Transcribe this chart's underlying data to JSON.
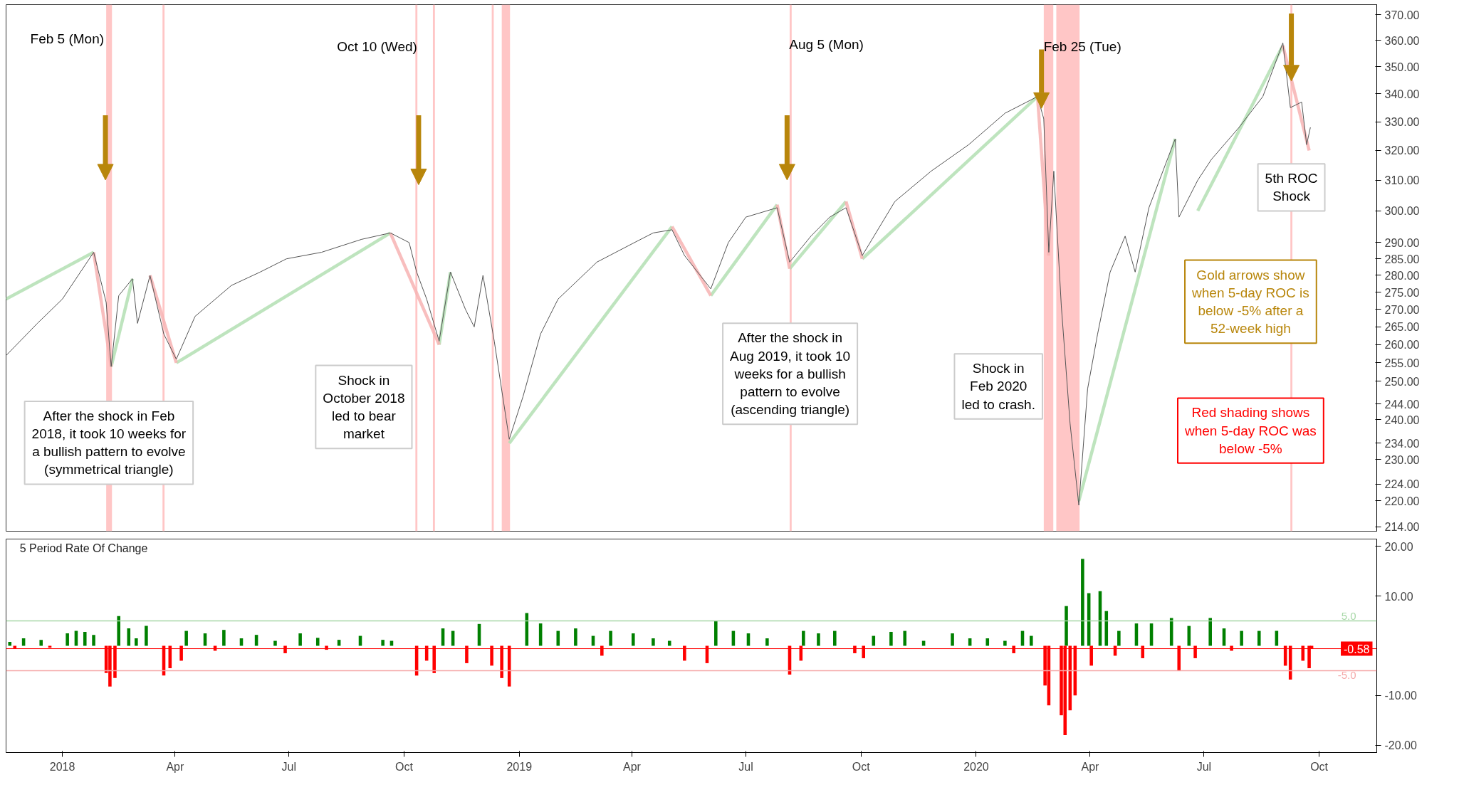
{
  "chart_data": [
    {
      "type": "line",
      "xlim": [
        "2017-11-17",
        "2020-11-16"
      ],
      "ylim": [
        213,
        374
      ],
      "log": true,
      "grid": false,
      "tick_labels": "y",
      "yticks": [
        {
          "value": 370,
          "label": "370.00"
        },
        {
          "value": 360,
          "label": "360.00"
        },
        {
          "value": 350,
          "label": "350.00"
        },
        {
          "value": 340,
          "label": "340.00"
        },
        {
          "value": 330,
          "label": "330.00"
        },
        {
          "value": 320,
          "label": "320.00"
        },
        {
          "value": 310,
          "label": "310.00"
        },
        {
          "value": 300,
          "label": "300.00"
        },
        {
          "value": 290,
          "label": "290.00"
        },
        {
          "value": 285,
          "label": "285.00"
        },
        {
          "value": 280,
          "label": "280.00"
        },
        {
          "value": 275,
          "label": "275.00"
        },
        {
          "value": 270,
          "label": "270.00"
        },
        {
          "value": 265,
          "label": "265.00"
        },
        {
          "value": 260,
          "label": "260.00"
        },
        {
          "value": 255,
          "label": "255.00"
        },
        {
          "value": 250,
          "label": "250.00"
        },
        {
          "value": 244,
          "label": "244.00"
        },
        {
          "value": 240,
          "label": "240.00"
        },
        {
          "value": 234,
          "label": "234.00"
        },
        {
          "value": 230,
          "label": "230.00"
        },
        {
          "value": 224,
          "label": "224.00"
        },
        {
          "value": 220,
          "label": "220.00"
        },
        {
          "value": 214,
          "label": "214.00"
        }
      ],
      "series": [
        {
          "color": "#b3dfb3",
          "x": [
            "2017-11-17",
            "2018-01-26"
          ],
          "values": [
            273,
            287
          ]
        },
        {
          "color": "#b3dfb3",
          "x": [
            "2018-02-09",
            "2018-02-26"
          ],
          "values": [
            254,
            279
          ]
        },
        {
          "color": "#b3dfb3",
          "x": [
            "2018-04-02",
            "2018-09-20"
          ],
          "values": [
            255,
            293
          ]
        },
        {
          "color": "#b3dfb3",
          "x": [
            "2018-10-29",
            "2018-11-07"
          ],
          "values": [
            260,
            281
          ]
        },
        {
          "color": "#b3dfb3",
          "x": [
            "2018-12-24",
            "2019-05-03"
          ],
          "values": [
            234,
            295
          ]
        },
        {
          "color": "#b3dfb3",
          "x": [
            "2019-06-03",
            "2019-07-26"
          ],
          "values": [
            274,
            302
          ]
        },
        {
          "color": "#b3dfb3",
          "x": [
            "2019-08-05",
            "2019-09-19"
          ],
          "values": [
            282,
            303
          ]
        },
        {
          "color": "#b3dfb3",
          "x": [
            "2019-10-02",
            "2020-02-19"
          ],
          "values": [
            285,
            339
          ]
        },
        {
          "color": "#b3dfb3",
          "x": [
            "2020-03-23",
            "2020-06-08"
          ],
          "values": [
            220,
            324
          ]
        },
        {
          "color": "#b3dfb3",
          "x": [
            "2020-06-26",
            "2020-09-02"
          ],
          "values": [
            300,
            358
          ]
        },
        {
          "color": "#f7b3b3",
          "x": [
            "2018-01-26",
            "2018-02-09"
          ],
          "values": [
            287,
            254
          ]
        },
        {
          "color": "#f7b3b3",
          "x": [
            "2018-03-12",
            "2018-04-02"
          ],
          "values": [
            280,
            255
          ]
        },
        {
          "color": "#f7b3b3",
          "x": [
            "2018-09-20",
            "2018-10-29"
          ],
          "values": [
            293,
            260
          ]
        },
        {
          "color": "#f7b3b3",
          "x": [
            "2019-05-03",
            "2019-06-03"
          ],
          "values": [
            295,
            274
          ]
        },
        {
          "color": "#f7b3b3",
          "x": [
            "2019-07-26",
            "2019-08-05"
          ],
          "values": [
            302,
            282
          ]
        },
        {
          "color": "#f7b3b3",
          "x": [
            "2019-09-19",
            "2019-10-02"
          ],
          "values": [
            303,
            285
          ]
        },
        {
          "color": "#f7b3b3",
          "x": [
            "2020-02-19",
            "2020-02-28"
          ],
          "values": [
            339,
            286
          ]
        },
        {
          "color": "#f7b3b3",
          "x": [
            "2020-09-02",
            "2020-09-23"
          ],
          "values": [
            358,
            320
          ]
        },
        {
          "color": "#555555",
          "x": [
            "2017-11-17",
            "2017-12-12",
            "2018-01-01",
            "2018-01-26",
            "2018-02-05",
            "2018-02-08",
            "2018-02-09",
            "2018-02-15",
            "2018-02-26",
            "2018-03-02",
            "2018-03-12",
            "2018-03-23",
            "2018-04-02",
            "2018-04-17",
            "2018-05-16",
            "2018-06-08",
            "2018-06-29",
            "2018-07-27",
            "2018-08-28",
            "2018-09-20",
            "2018-10-05",
            "2018-10-11",
            "2018-10-19",
            "2018-10-29",
            "2018-11-07",
            "2018-11-19",
            "2018-11-26",
            "2018-12-03",
            "2018-12-12",
            "2018-12-24",
            "2019-01-04",
            "2019-01-18",
            "2019-02-01",
            "2019-03-04",
            "2019-04-03",
            "2019-04-18",
            "2019-05-03",
            "2019-05-13",
            "2019-06-03",
            "2019-06-17",
            "2019-07-01",
            "2019-07-26",
            "2019-08-05",
            "2019-08-22",
            "2019-09-06",
            "2019-09-19",
            "2019-10-02",
            "2019-10-28",
            "2019-11-26",
            "2019-12-26",
            "2020-01-24",
            "2020-02-19",
            "2020-02-24",
            "2020-02-28",
            "2020-03-03",
            "2020-03-09",
            "2020-03-16",
            "2020-03-23",
            "2020-03-30",
            "2020-04-07",
            "2020-04-17",
            "2020-04-29",
            "2020-05-07",
            "2020-05-18",
            "2020-06-08",
            "2020-06-11",
            "2020-06-26",
            "2020-07-07",
            "2020-07-29",
            "2020-08-17",
            "2020-09-02",
            "2020-09-08",
            "2020-09-17",
            "2020-09-21",
            "2020-09-24"
          ],
          "values": [
            257,
            266,
            273,
            287,
            272,
            258,
            254,
            274,
            279,
            266,
            280,
            263,
            256,
            268,
            277,
            281,
            285,
            287,
            291,
            293,
            290,
            281,
            273,
            261,
            281,
            270,
            265,
            280,
            261,
            235,
            246,
            263,
            273,
            284,
            290,
            293,
            294,
            286,
            276,
            290,
            298,
            301,
            284,
            292,
            298,
            301,
            286,
            303,
            313,
            322,
            333,
            339,
            331,
            287,
            313,
            271,
            239,
            219,
            248,
            263,
            281,
            292,
            281,
            301,
            324,
            298,
            310,
            317,
            328,
            339,
            359,
            335,
            337,
            322,
            328
          ]
        }
      ],
      "bands": [
        {
          "axis": "x",
          "from": "2018-02-05",
          "to": "2018-02-09",
          "color": "#ffc0c0"
        },
        {
          "axis": "x",
          "from": "2018-03-22",
          "to": "2018-03-23",
          "color": "#ffc0c0"
        },
        {
          "axis": "x",
          "from": "2018-10-10",
          "to": "2018-10-11",
          "color": "#ffc0c0"
        },
        {
          "axis": "x",
          "from": "2018-10-24",
          "to": "2018-10-25",
          "color": "#ffc0c0"
        },
        {
          "axis": "x",
          "from": "2018-12-10",
          "to": "2018-12-11",
          "color": "#ffc0c0"
        },
        {
          "axis": "x",
          "from": "2018-12-18",
          "to": "2018-12-24",
          "color": "#ffc0c0"
        },
        {
          "axis": "x",
          "from": "2019-08-05",
          "to": "2019-08-06",
          "color": "#ffc0c0"
        },
        {
          "axis": "x",
          "from": "2020-02-24",
          "to": "2020-03-02",
          "color": "#ffc0c0"
        },
        {
          "axis": "x",
          "from": "2020-03-05",
          "to": "2020-03-23",
          "color": "#ffc0c0"
        },
        {
          "axis": "x",
          "from": "2020-09-08",
          "to": "2020-09-09",
          "color": "#ffc0c0"
        }
      ],
      "annotations": [
        "Feb 5 (Mon)",
        "Oct 10 (Wed)",
        "Aug 5 (Mon)",
        "Feb 25 (Tue)",
        "5th ROC\nShock",
        "After the shock in Feb\n2018, it took 10 weeks for\na bullish pattern to evolve\n(symmetrical triangle)",
        "Shock in\nOctober 2018\nled to bear\nmarket",
        "After the shock in\nAug 2019, it took 10\nweeks for a bullish\npattern to evolve\n(ascending triangle)",
        "Shock in\nFeb 2020\nled to crash.",
        "Gold arrows show\nwhen 5-day ROC is\nbelow -5% after a\n52-week high",
        "Red shading shows\nwhen 5-day ROC was\nbelow -5%"
      ]
    },
    {
      "type": "bar",
      "title": "5 Period Rate Of Change",
      "xlim": [
        "2017-11-17",
        "2020-11-16"
      ],
      "ylim": [
        -21.5,
        21.5
      ],
      "grid": false,
      "xticks": [
        {
          "value": "2018-01-01",
          "label": "2018"
        },
        {
          "value": "2018-04-01",
          "label": "Apr"
        },
        {
          "value": "2018-07-01",
          "label": "Jul"
        },
        {
          "value": "2018-10-01",
          "label": "Oct"
        },
        {
          "value": "2019-01-01",
          "label": "2019"
        },
        {
          "value": "2019-04-01",
          "label": "Apr"
        },
        {
          "value": "2019-07-01",
          "label": "Jul"
        },
        {
          "value": "2019-10-01",
          "label": "Oct"
        },
        {
          "value": "2020-01-01",
          "label": "2020"
        },
        {
          "value": "2020-04-01",
          "label": "Apr"
        },
        {
          "value": "2020-07-01",
          "label": "Jul"
        },
        {
          "value": "2020-10-01",
          "label": "Oct"
        }
      ],
      "yticks": [
        {
          "value": 20,
          "label": "20.00"
        },
        {
          "value": 10,
          "label": "10.00"
        },
        {
          "value": -10,
          "label": "-10.00"
        },
        {
          "value": -20,
          "label": "-20.00"
        }
      ],
      "ref_lines": [
        {
          "axis": "y",
          "value": 5,
          "label": "5.0",
          "color": "#a8d8a8"
        },
        {
          "axis": "y",
          "value": -5,
          "label": "-5.0",
          "color": "#f5a9a9"
        },
        {
          "axis": "y",
          "value": -0.58,
          "label": "-0.58",
          "color": "#ff0000"
        }
      ],
      "series": [
        {
          "color": "#008000",
          "x": [
            "2017-11-20",
            "2017-12-01",
            "2017-12-15",
            "2018-01-05",
            "2018-01-12",
            "2018-01-19",
            "2018-01-26",
            "2018-02-15",
            "2018-02-23",
            "2018-03-01",
            "2018-03-09",
            "2018-04-10",
            "2018-04-25",
            "2018-05-10",
            "2018-05-24",
            "2018-06-05",
            "2018-06-20",
            "2018-07-10",
            "2018-07-24",
            "2018-08-10",
            "2018-08-27",
            "2018-09-14",
            "2018-09-21",
            "2018-11-01",
            "2018-11-09",
            "2018-11-30",
            "2019-01-07",
            "2019-01-18",
            "2019-02-01",
            "2019-02-15",
            "2019-03-01",
            "2019-03-15",
            "2019-04-02",
            "2019-04-18",
            "2019-05-01",
            "2019-06-07",
            "2019-06-21",
            "2019-07-03",
            "2019-07-18",
            "2019-08-16",
            "2019-08-28",
            "2019-09-10",
            "2019-10-11",
            "2019-10-25",
            "2019-11-05",
            "2019-11-20",
            "2019-12-13",
            "2019-12-27",
            "2020-01-10",
            "2020-01-24",
            "2020-02-07",
            "2020-02-14",
            "2020-03-13",
            "2020-03-26",
            "2020-03-31",
            "2020-04-09",
            "2020-04-14",
            "2020-04-24",
            "2020-05-08",
            "2020-05-20",
            "2020-06-05",
            "2020-06-19",
            "2020-07-06",
            "2020-07-17",
            "2020-07-31",
            "2020-08-14",
            "2020-08-28"
          ],
          "values": [
            0.8,
            1.5,
            1.2,
            2.5,
            3,
            2.8,
            2.2,
            6,
            3.5,
            1.5,
            4,
            3,
            2.5,
            3.2,
            1.5,
            2.2,
            1,
            2.5,
            1.6,
            1.2,
            2,
            1.2,
            1,
            3.5,
            3,
            4.4,
            6.6,
            4.5,
            3,
            3.5,
            2,
            3,
            2.5,
            1.5,
            1,
            5,
            3,
            2.5,
            1.5,
            3,
            2.5,
            3,
            2,
            2.8,
            3,
            1,
            2.5,
            1.5,
            1.5,
            1,
            3,
            2,
            8,
            17.5,
            10.6,
            11,
            7,
            3,
            4.5,
            4.5,
            5.6,
            4,
            5.6,
            3.5,
            3,
            3,
            3
          ]
        },
        {
          "color": "#ff0000",
          "x": [
            "2017-11-24",
            "2017-12-22",
            "2018-02-05",
            "2018-02-08",
            "2018-02-12",
            "2018-03-23",
            "2018-03-28",
            "2018-04-06",
            "2018-05-03",
            "2018-06-28",
            "2018-07-31",
            "2018-10-11",
            "2018-10-19",
            "2018-10-25",
            "2018-11-20",
            "2018-12-10",
            "2018-12-18",
            "2018-12-24",
            "2019-03-08",
            "2019-05-13",
            "2019-05-31",
            "2019-08-05",
            "2019-08-14",
            "2019-09-26",
            "2019-10-03",
            "2020-01-31",
            "2020-02-25",
            "2020-02-28",
            "2020-03-09",
            "2020-03-12",
            "2020-03-16",
            "2020-03-20",
            "2020-04-02",
            "2020-04-21",
            "2020-05-13",
            "2020-06-11",
            "2020-06-24",
            "2020-07-23",
            "2020-09-04",
            "2020-09-08",
            "2020-09-18",
            "2020-09-23",
            "2020-09-25"
          ],
          "values": [
            -0.5,
            -0.4,
            -5.5,
            -8.2,
            -6.5,
            -6,
            -4.5,
            -3,
            -1,
            -1.5,
            -0.8,
            -6,
            -3,
            -5.5,
            -3.5,
            -4,
            -6.5,
            -8.2,
            -2,
            -3,
            -3.5,
            -5.8,
            -3,
            -1.5,
            -2.5,
            -1.5,
            -8,
            -12,
            -14,
            -18,
            -13,
            -10,
            -4,
            -2,
            -2.5,
            -5,
            -2.5,
            -1,
            -4,
            -6.8,
            -3,
            -4.5,
            -0.6
          ]
        }
      ]
    }
  ]
}
